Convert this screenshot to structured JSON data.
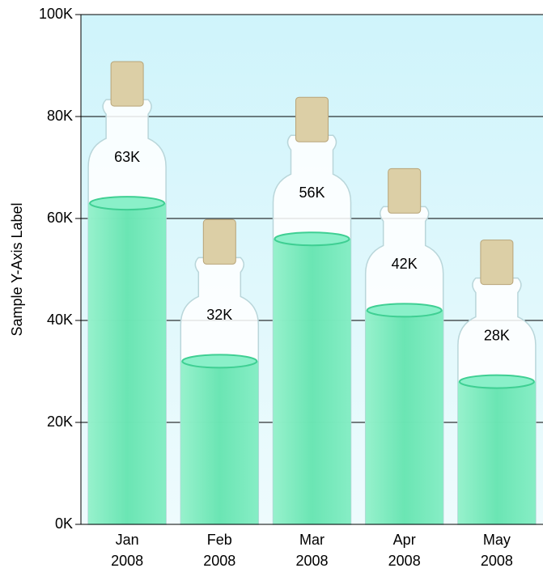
{
  "chart_data": {
    "type": "bar",
    "y_axis_label": "Sample Y-Axis Label",
    "categories": [
      "Jan 2008",
      "Feb 2008",
      "Mar 2008",
      "Apr 2008",
      "May 2008"
    ],
    "values": [
      63000,
      32000,
      56000,
      42000,
      28000
    ],
    "value_labels": [
      "63K",
      "32K",
      "56K",
      "42K",
      "28K"
    ],
    "color": "#5ee3ad",
    "ylim": [
      0,
      100000
    ],
    "yticks": [
      {
        "value": 0,
        "label": "0K"
      },
      {
        "value": 20000,
        "label": "20K"
      },
      {
        "value": 40000,
        "label": "40K"
      },
      {
        "value": 60000,
        "label": "60K"
      },
      {
        "value": 80000,
        "label": "80K"
      },
      {
        "value": 100000,
        "label": "100K"
      }
    ],
    "grid": true
  }
}
